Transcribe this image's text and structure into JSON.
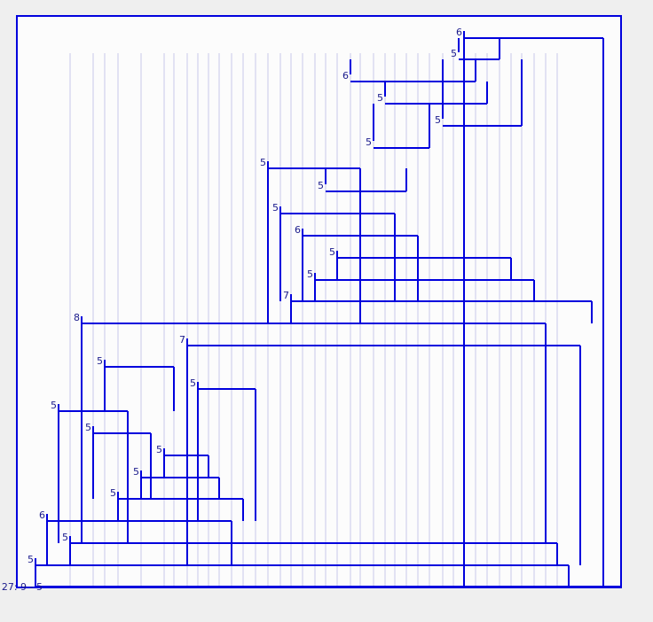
{
  "colors": {
    "background": "#efefef",
    "panel": "#fcfcfc",
    "line": "#0000dd",
    "guide": "#c8c8ea",
    "label": "#1a1a8c"
  },
  "root_label": "27: 9 - 5",
  "nodes": [
    {
      "id": "n1",
      "label": "6"
    },
    {
      "id": "n2",
      "label": "5"
    },
    {
      "id": "n3",
      "label": "6"
    },
    {
      "id": "n4",
      "label": "5"
    },
    {
      "id": "n5",
      "label": "5"
    },
    {
      "id": "n6",
      "label": "5"
    },
    {
      "id": "n7",
      "label": "5"
    },
    {
      "id": "n8",
      "label": "5"
    },
    {
      "id": "n9",
      "label": "5"
    },
    {
      "id": "n10",
      "label": "6"
    },
    {
      "id": "n11",
      "label": "5"
    },
    {
      "id": "n12",
      "label": "5"
    },
    {
      "id": "n13",
      "label": "7"
    },
    {
      "id": "n14",
      "label": "8"
    },
    {
      "id": "n15",
      "label": "7"
    },
    {
      "id": "n16",
      "label": "5"
    },
    {
      "id": "n17",
      "label": "5"
    },
    {
      "id": "n18",
      "label": "5"
    },
    {
      "id": "n19",
      "label": "5"
    },
    {
      "id": "n20",
      "label": "5"
    },
    {
      "id": "n21",
      "label": "5"
    },
    {
      "id": "n22",
      "label": "5"
    },
    {
      "id": "n23",
      "label": "6"
    },
    {
      "id": "n24",
      "label": "5"
    },
    {
      "id": "n25",
      "label": "5"
    }
  ]
}
